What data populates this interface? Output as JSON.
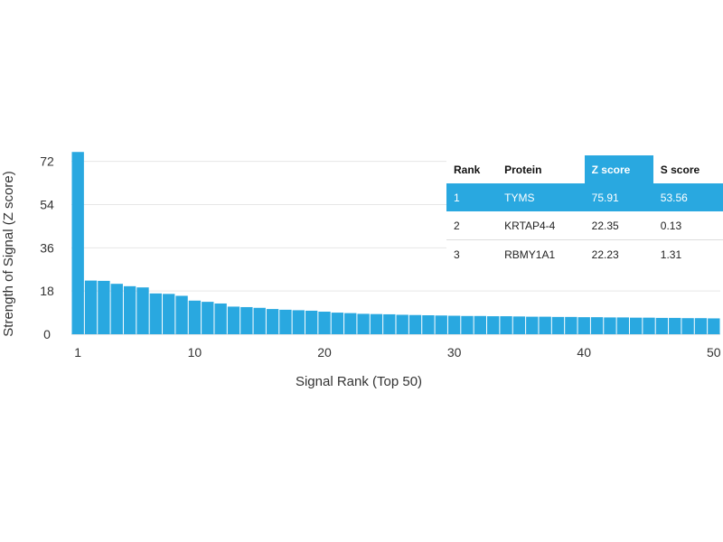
{
  "chart_data": {
    "type": "bar",
    "x": [
      1,
      2,
      3,
      4,
      5,
      6,
      7,
      8,
      9,
      10,
      11,
      12,
      13,
      14,
      15,
      16,
      17,
      18,
      19,
      20,
      21,
      22,
      23,
      24,
      25,
      26,
      27,
      28,
      29,
      30,
      31,
      32,
      33,
      34,
      35,
      36,
      37,
      38,
      39,
      40,
      41,
      42,
      43,
      44,
      45,
      46,
      47,
      48,
      49,
      50
    ],
    "values": [
      75.91,
      22.35,
      22.23,
      21,
      20,
      19.5,
      17,
      16.8,
      16,
      14,
      13.5,
      12.8,
      11.5,
      11.3,
      11,
      10.5,
      10.2,
      10,
      9.8,
      9.4,
      9,
      8.8,
      8.5,
      8.4,
      8.3,
      8.1,
      8,
      7.9,
      7.8,
      7.7,
      7.6,
      7.6,
      7.5,
      7.5,
      7.4,
      7.3,
      7.3,
      7.2,
      7.2,
      7.1,
      7.1,
      7.0,
      7.0,
      6.9,
      6.9,
      6.8,
      6.8,
      6.7,
      6.7,
      6.6
    ],
    "xlabel": "Signal Rank (Top 50)",
    "ylabel": "Strength of Signal (Z score)",
    "ylim": [
      0,
      76
    ],
    "yticks": [
      0,
      18,
      36,
      54,
      72
    ],
    "xticks": [
      1,
      10,
      20,
      30,
      40,
      50
    ],
    "grid": true,
    "bar_color": "#29a8e0"
  },
  "table": {
    "headers": [
      "Rank",
      "Protein",
      "Z score",
      "S score"
    ],
    "rows": [
      [
        "1",
        "TYMS",
        "75.91",
        "53.56"
      ],
      [
        "2",
        "KRTAP4-4",
        "22.35",
        "0.13"
      ],
      [
        "3",
        "RBMY1A1",
        "22.23",
        "1.31"
      ]
    ],
    "highlight_color": "#29a8e0"
  }
}
